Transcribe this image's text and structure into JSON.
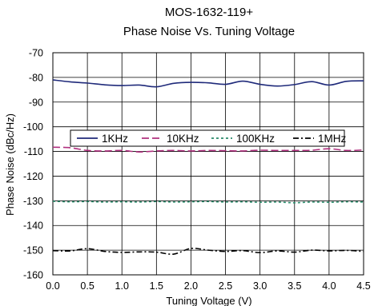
{
  "chart_data": {
    "type": "line",
    "title": "MOS-1632-119+",
    "subtitle": "Phase Noise Vs. Tuning Voltage",
    "xlabel": "Tuning Voltage (V)",
    "ylabel": "Phase Noise (dBc/Hz)",
    "xlim": [
      0,
      4.5
    ],
    "ylim": [
      -160,
      -70
    ],
    "xticks": [
      "0.0",
      "0.5",
      "1.0",
      "1.5",
      "2.0",
      "2.5",
      "3.0",
      "3.5",
      "4.0",
      "4.5"
    ],
    "yticks": [
      "-70",
      "-80",
      "-90",
      "-100",
      "-110",
      "-120",
      "-130",
      "-140",
      "-150",
      "-160"
    ],
    "grid": true,
    "legend_position": "top-center",
    "x": [
      0.0,
      0.25,
      0.5,
      0.75,
      1.0,
      1.25,
      1.5,
      1.75,
      2.0,
      2.25,
      2.5,
      2.75,
      3.0,
      3.25,
      3.5,
      3.75,
      4.0,
      4.25,
      4.5
    ],
    "series": [
      {
        "name": "1KHz",
        "color": "#1f2a7a",
        "dash": "solid",
        "values": [
          -81.0,
          -81.8,
          -82.3,
          -83.0,
          -83.3,
          -83.1,
          -83.8,
          -82.4,
          -82.0,
          -82.2,
          -82.8,
          -81.5,
          -82.8,
          -83.5,
          -82.9,
          -81.7,
          -83.1,
          -81.6,
          -81.4
        ]
      },
      {
        "name": "10KHz",
        "color": "#b0307f",
        "dash": "long-dash",
        "values": [
          -108.3,
          -108.5,
          -109.6,
          -109.8,
          -109.6,
          -110.2,
          -109.8,
          -109.6,
          -109.8,
          -109.6,
          -109.7,
          -109.8,
          -109.5,
          -109.6,
          -109.6,
          -109.5,
          -108.9,
          -109.6,
          -109.4
        ]
      },
      {
        "name": "100KHz",
        "color": "#2a8a6a",
        "dash": "dotted",
        "values": [
          -130.2,
          -130.4,
          -130.3,
          -130.5,
          -130.4,
          -130.5,
          -130.3,
          -130.5,
          -130.4,
          -130.3,
          -130.5,
          -130.4,
          -130.6,
          -130.5,
          -130.8,
          -130.5,
          -130.6,
          -130.4,
          -130.5
        ]
      },
      {
        "name": "1MHz",
        "color": "#000000",
        "dash": "dash-dot",
        "values": [
          -150.2,
          -150.3,
          -149.4,
          -150.5,
          -150.9,
          -150.7,
          -150.8,
          -151.6,
          -149.3,
          -150.0,
          -150.5,
          -150.2,
          -151.0,
          -150.3,
          -150.8,
          -150.0,
          -150.3,
          -150.1,
          -150.5
        ]
      }
    ]
  }
}
